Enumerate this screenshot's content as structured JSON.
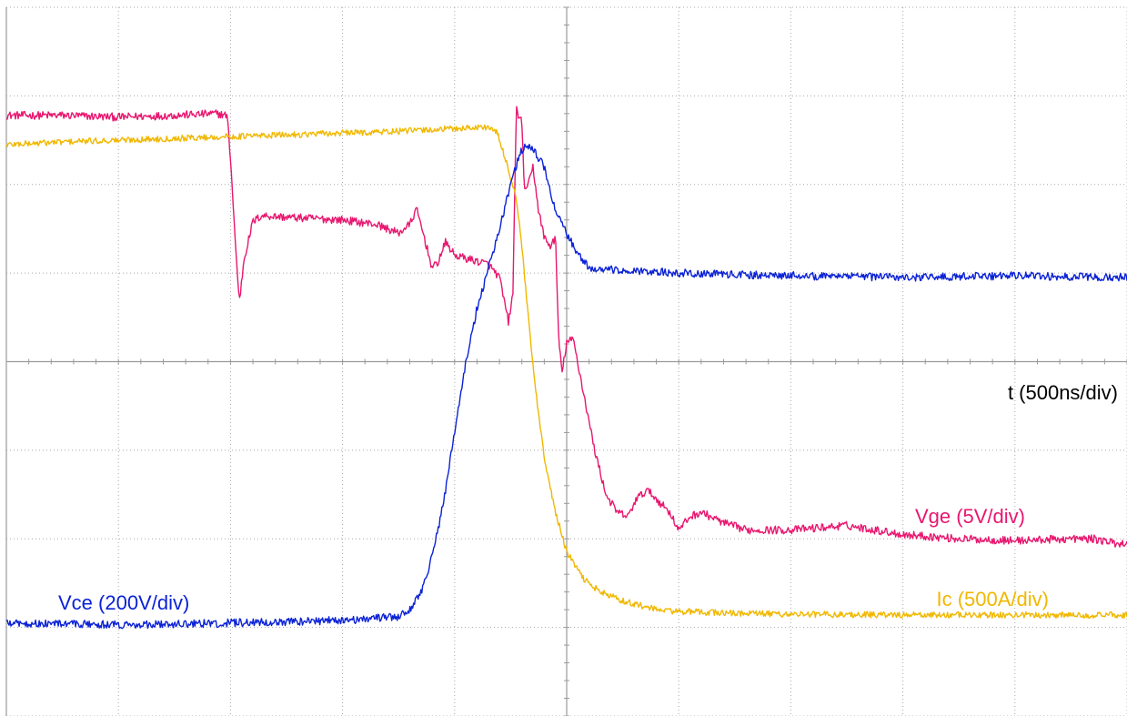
{
  "chart_data": {
    "type": "line",
    "title": "",
    "x_axis_label": "t (500ns/div)",
    "x_divisions": 10,
    "y_divisions": 8,
    "grid": true,
    "series": [
      {
        "name": "Vge (5V/div)",
        "color": "#e8176f",
        "unit": "div",
        "points": [
          [
            0,
            2.78
          ],
          [
            0.5,
            2.78
          ],
          [
            1.0,
            2.76
          ],
          [
            1.5,
            2.78
          ],
          [
            1.87,
            2.8
          ],
          [
            1.97,
            2.78
          ],
          [
            2.0,
            2.3
          ],
          [
            2.05,
            1.2
          ],
          [
            2.08,
            0.68
          ],
          [
            2.12,
            1.15
          ],
          [
            2.2,
            1.58
          ],
          [
            2.28,
            1.65
          ],
          [
            2.5,
            1.63
          ],
          [
            3.0,
            1.6
          ],
          [
            3.3,
            1.55
          ],
          [
            3.5,
            1.45
          ],
          [
            3.6,
            1.55
          ],
          [
            3.66,
            1.72
          ],
          [
            3.72,
            1.45
          ],
          [
            3.8,
            1.05
          ],
          [
            3.85,
            1.12
          ],
          [
            3.92,
            1.35
          ],
          [
            4.0,
            1.2
          ],
          [
            4.15,
            1.15
          ],
          [
            4.3,
            1.1
          ],
          [
            4.4,
            0.95
          ],
          [
            4.48,
            0.45
          ],
          [
            4.52,
            0.75
          ],
          [
            4.55,
            2.85
          ],
          [
            4.6,
            2.7
          ],
          [
            4.62,
            2.0
          ],
          [
            4.65,
            1.95
          ],
          [
            4.7,
            2.2
          ],
          [
            4.75,
            1.7
          ],
          [
            4.8,
            1.4
          ],
          [
            4.85,
            1.3
          ],
          [
            4.9,
            1.4
          ],
          [
            4.93,
            0.2
          ],
          [
            4.96,
            -0.12
          ],
          [
            5.0,
            0.22
          ],
          [
            5.06,
            0.25
          ],
          [
            5.15,
            -0.35
          ],
          [
            5.25,
            -1.0
          ],
          [
            5.35,
            -1.5
          ],
          [
            5.45,
            -1.7
          ],
          [
            5.55,
            -1.75
          ],
          [
            5.62,
            -1.55
          ],
          [
            5.72,
            -1.45
          ],
          [
            5.8,
            -1.55
          ],
          [
            5.92,
            -1.7
          ],
          [
            6.0,
            -1.9
          ],
          [
            6.1,
            -1.75
          ],
          [
            6.2,
            -1.7
          ],
          [
            6.4,
            -1.82
          ],
          [
            6.6,
            -1.9
          ],
          [
            7.0,
            -1.9
          ],
          [
            7.5,
            -1.85
          ],
          [
            8.0,
            -1.95
          ],
          [
            8.5,
            -2.0
          ],
          [
            9.0,
            -2.02
          ],
          [
            9.5,
            -2.0
          ],
          [
            9.7,
            -2.0
          ],
          [
            9.9,
            -2.05
          ],
          [
            10.0,
            -2.05
          ]
        ]
      },
      {
        "name": "Ic (500A/div)",
        "color": "#f0b800",
        "unit": "div",
        "points": [
          [
            0,
            2.45
          ],
          [
            0.5,
            2.48
          ],
          [
            1.0,
            2.5
          ],
          [
            1.5,
            2.52
          ],
          [
            2.0,
            2.54
          ],
          [
            2.5,
            2.56
          ],
          [
            3.0,
            2.58
          ],
          [
            3.5,
            2.6
          ],
          [
            4.0,
            2.63
          ],
          [
            4.3,
            2.65
          ],
          [
            4.38,
            2.58
          ],
          [
            4.45,
            2.3
          ],
          [
            4.55,
            1.85
          ],
          [
            4.6,
            1.3
          ],
          [
            4.65,
            0.6
          ],
          [
            4.72,
            -0.3
          ],
          [
            4.8,
            -1.1
          ],
          [
            4.9,
            -1.7
          ],
          [
            5.0,
            -2.15
          ],
          [
            5.15,
            -2.45
          ],
          [
            5.3,
            -2.6
          ],
          [
            5.5,
            -2.7
          ],
          [
            5.8,
            -2.8
          ],
          [
            6.0,
            -2.82
          ],
          [
            6.5,
            -2.84
          ],
          [
            7.0,
            -2.85
          ],
          [
            8.0,
            -2.86
          ],
          [
            9.0,
            -2.86
          ],
          [
            10.0,
            -2.86
          ]
        ]
      },
      {
        "name": "Vce (200V/div)",
        "color": "#0b22d6",
        "unit": "div",
        "points": [
          [
            0,
            -2.95
          ],
          [
            1.0,
            -2.97
          ],
          [
            2.0,
            -2.95
          ],
          [
            3.0,
            -2.92
          ],
          [
            3.5,
            -2.88
          ],
          [
            3.6,
            -2.8
          ],
          [
            3.7,
            -2.6
          ],
          [
            3.8,
            -2.2
          ],
          [
            3.9,
            -1.6
          ],
          [
            4.0,
            -0.8
          ],
          [
            4.1,
            0.0
          ],
          [
            4.2,
            0.6
          ],
          [
            4.3,
            1.05
          ],
          [
            4.4,
            1.5
          ],
          [
            4.5,
            2.0
          ],
          [
            4.58,
            2.35
          ],
          [
            4.65,
            2.45
          ],
          [
            4.72,
            2.35
          ],
          [
            4.8,
            2.2
          ],
          [
            4.9,
            1.7
          ],
          [
            5.0,
            1.45
          ],
          [
            5.1,
            1.2
          ],
          [
            5.2,
            1.07
          ],
          [
            5.3,
            1.04
          ],
          [
            5.5,
            1.03
          ],
          [
            6.0,
            1.0
          ],
          [
            7.0,
            0.97
          ],
          [
            8.0,
            0.95
          ],
          [
            9.0,
            0.97
          ],
          [
            10.0,
            0.95
          ]
        ]
      }
    ],
    "labels": {
      "vge": "Vge (5V/div)",
      "ic": "Ic (500A/div)",
      "vce": "Vce (200V/div)"
    }
  }
}
